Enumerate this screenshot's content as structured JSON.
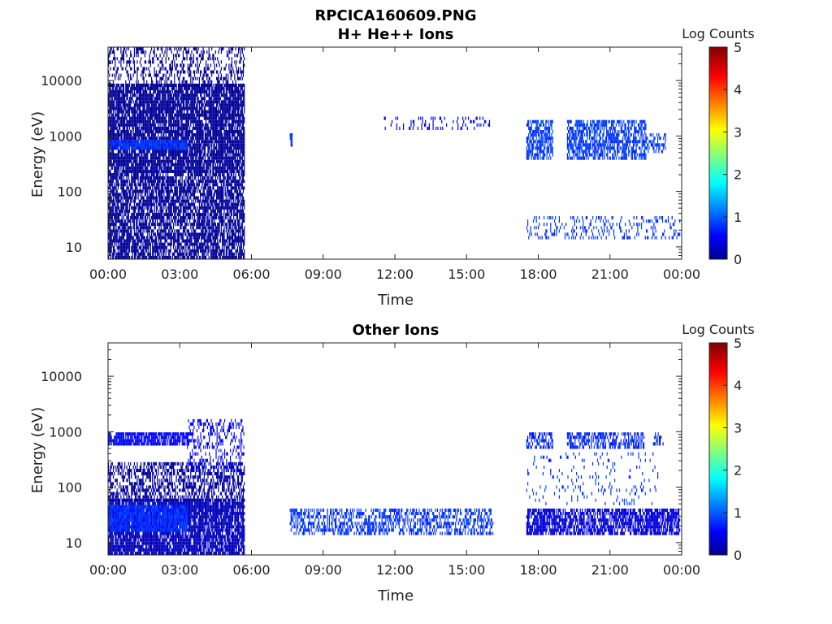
{
  "figure": {
    "title_line1": "RPCICA160609.PNG"
  },
  "chart_data": [
    {
      "type": "heatmap",
      "title": "H+ He++ Ions",
      "xlabel": "Time",
      "ylabel": "Energy (eV)",
      "xticks": [
        "00:00",
        "03:00",
        "06:00",
        "09:00",
        "12:00",
        "15:00",
        "18:00",
        "21:00",
        "00:00"
      ],
      "xlim_hours": [
        0,
        24
      ],
      "yticks": [
        "10",
        "100",
        "1000",
        "10000"
      ],
      "ylog": true,
      "ylim": [
        6,
        40000
      ],
      "colorbar": {
        "label": "Log Counts",
        "ticks": [
          "0",
          "1",
          "2",
          "3",
          "4",
          "5"
        ],
        "range": [
          0,
          5
        ],
        "colormap": "jet"
      },
      "regions": [
        {
          "t": [
            0.0,
            5.7
          ],
          "e": [
            6,
            200
          ],
          "level": 0.12,
          "density": 0.75
        },
        {
          "t": [
            0.0,
            5.7
          ],
          "e": [
            215,
            8000
          ],
          "level": 0.12,
          "density": 0.85
        },
        {
          "t": [
            0.0,
            5.7
          ],
          "e": [
            8000,
            35000
          ],
          "level": 0.1,
          "density": 0.35
        },
        {
          "t": [
            0.0,
            3.3
          ],
          "e": [
            620,
            820
          ],
          "level": 0.9,
          "density": 0.9
        },
        {
          "t": [
            7.6,
            7.7
          ],
          "e": [
            700,
            1000
          ],
          "level": 0.8,
          "density": 0.8
        },
        {
          "t": [
            11.5,
            16.0
          ],
          "e": [
            1400,
            2200
          ],
          "level": 0.6,
          "density": 0.15
        },
        {
          "t": [
            17.5,
            18.6
          ],
          "e": [
            420,
            1700
          ],
          "level": 0.95,
          "density": 0.7
        },
        {
          "t": [
            19.2,
            22.5
          ],
          "e": [
            420,
            1700
          ],
          "level": 0.95,
          "density": 0.65
        },
        {
          "t": [
            22.5,
            23.3
          ],
          "e": [
            500,
            1000
          ],
          "level": 0.9,
          "density": 0.4
        },
        {
          "t": [
            17.5,
            23.9
          ],
          "e": [
            14,
            35
          ],
          "level": 0.9,
          "density": 0.22
        }
      ]
    },
    {
      "type": "heatmap",
      "title": "Other Ions",
      "xlabel": "Time",
      "ylabel": "Energy (eV)",
      "xticks": [
        "00:00",
        "03:00",
        "06:00",
        "09:00",
        "12:00",
        "15:00",
        "18:00",
        "21:00",
        "00:00"
      ],
      "xlim_hours": [
        0,
        24
      ],
      "yticks": [
        "10",
        "100",
        "1000",
        "10000"
      ],
      "ylog": true,
      "ylim": [
        6,
        40000
      ],
      "colorbar": {
        "label": "Log Counts",
        "ticks": [
          "0",
          "1",
          "2",
          "3",
          "4",
          "5"
        ],
        "range": [
          0,
          5
        ],
        "colormap": "jet"
      },
      "regions": [
        {
          "t": [
            0.0,
            5.7
          ],
          "e": [
            6,
            60
          ],
          "level": 0.3,
          "density": 0.85
        },
        {
          "t": [
            0.0,
            3.3
          ],
          "e": [
            18,
            45
          ],
          "level": 0.85,
          "density": 0.9
        },
        {
          "t": [
            0.0,
            5.7
          ],
          "e": [
            60,
            280
          ],
          "level": 0.15,
          "density": 0.5
        },
        {
          "t": [
            3.3,
            5.7
          ],
          "e": [
            200,
            1500
          ],
          "level": 0.6,
          "density": 0.3
        },
        {
          "t": [
            0.0,
            3.4
          ],
          "e": [
            620,
            850
          ],
          "level": 0.6,
          "density": 0.85
        },
        {
          "t": [
            7.6,
            16.1
          ],
          "e": [
            15,
            40
          ],
          "level": 0.9,
          "density": 0.5
        },
        {
          "t": [
            17.5,
            18.6
          ],
          "e": [
            520,
            950
          ],
          "level": 0.8,
          "density": 0.55
        },
        {
          "t": [
            19.2,
            22.4
          ],
          "e": [
            520,
            950
          ],
          "level": 0.8,
          "density": 0.55
        },
        {
          "t": [
            22.8,
            23.2
          ],
          "e": [
            600,
            900
          ],
          "level": 0.8,
          "density": 0.35
        },
        {
          "t": [
            17.5,
            23.9
          ],
          "e": [
            15,
            40
          ],
          "level": 0.45,
          "density": 0.75
        },
        {
          "t": [
            17.5,
            23.0
          ],
          "e": [
            50,
            400
          ],
          "level": 0.9,
          "density": 0.08
        }
      ]
    }
  ]
}
